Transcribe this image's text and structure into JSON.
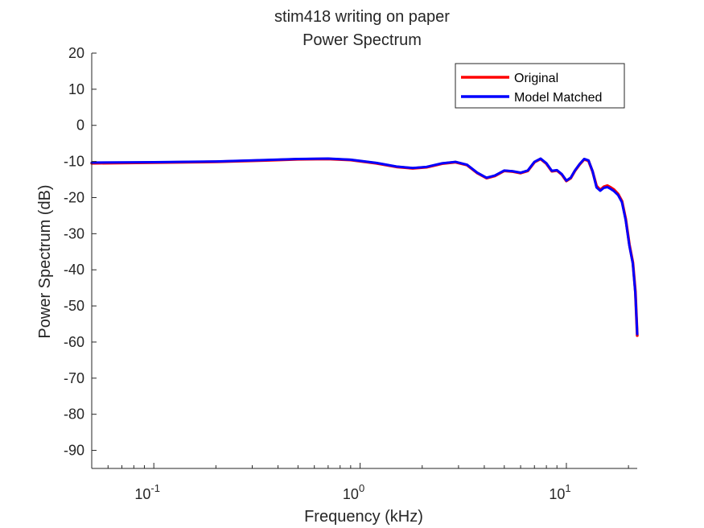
{
  "chart_data": {
    "type": "line",
    "title_lines": [
      "stim418 writing on paper",
      "Power Spectrum"
    ],
    "xlabel": "Frequency (kHz)",
    "ylabel": "Power Spectrum (dB)",
    "xscale": "log",
    "xlim": [
      0.05,
      22.05
    ],
    "ylim": [
      -95,
      20
    ],
    "yticks": [
      20,
      10,
      0,
      -10,
      -20,
      -30,
      -40,
      -50,
      -60,
      -70,
      -80,
      -90
    ],
    "xticks": [
      {
        "value": 0.1,
        "base": "10",
        "exp": "-1"
      },
      {
        "value": 1,
        "base": "10",
        "exp": "0"
      },
      {
        "value": 10,
        "base": "10",
        "exp": "1"
      }
    ],
    "grid": false,
    "legend_position": "top-right",
    "series": [
      {
        "name": "Original",
        "color": "#ff0000",
        "x": [
          0.05,
          0.1,
          0.2,
          0.35,
          0.5,
          0.7,
          0.9,
          1.2,
          1.5,
          1.8,
          2.1,
          2.5,
          2.9,
          3.3,
          3.7,
          4.1,
          4.5,
          5.0,
          5.5,
          6.0,
          6.5,
          7.0,
          7.5,
          8.0,
          8.5,
          9.0,
          9.5,
          10.0,
          10.5,
          11.0,
          11.6,
          12.2,
          12.8,
          13.4,
          14.0,
          14.6,
          15.2,
          15.8,
          16.4,
          17.0,
          17.8,
          18.6,
          19.4,
          20.2,
          21.0,
          21.6,
          22.05
        ],
        "y": [
          -10.5,
          -10.3,
          -10.1,
          -9.7,
          -9.4,
          -9.3,
          -9.6,
          -10.5,
          -11.5,
          -11.9,
          -11.6,
          -10.6,
          -10.2,
          -11.0,
          -13.2,
          -14.6,
          -14.0,
          -12.6,
          -12.8,
          -13.2,
          -12.6,
          -10.2,
          -9.3,
          -10.6,
          -12.7,
          -12.5,
          -13.6,
          -15.4,
          -14.6,
          -12.6,
          -10.8,
          -9.4,
          -9.8,
          -12.8,
          -16.8,
          -17.9,
          -17.0,
          -16.7,
          -17.2,
          -17.8,
          -19.0,
          -21.0,
          -26.0,
          -33.0,
          -38.0,
          -46.0,
          -58.2
        ]
      },
      {
        "name": "Model Matched",
        "color": "#0000ff",
        "x": [
          0.05,
          0.1,
          0.2,
          0.35,
          0.5,
          0.7,
          0.9,
          1.2,
          1.5,
          1.8,
          2.1,
          2.5,
          2.9,
          3.3,
          3.7,
          4.1,
          4.5,
          5.0,
          5.5,
          6.0,
          6.5,
          7.0,
          7.5,
          8.0,
          8.5,
          9.0,
          9.5,
          10.0,
          10.5,
          11.0,
          11.6,
          12.2,
          12.8,
          13.4,
          14.0,
          14.6,
          15.2,
          15.8,
          16.4,
          17.0,
          17.8,
          18.6,
          19.4,
          20.2,
          21.0,
          21.6,
          22.05
        ],
        "y": [
          -10.3,
          -10.2,
          -10.0,
          -9.6,
          -9.3,
          -9.2,
          -9.5,
          -10.4,
          -11.4,
          -11.8,
          -11.5,
          -10.5,
          -10.1,
          -10.9,
          -13.1,
          -14.5,
          -13.9,
          -12.5,
          -12.7,
          -13.1,
          -12.5,
          -10.1,
          -9.2,
          -10.5,
          -12.6,
          -12.4,
          -13.5,
          -15.3,
          -14.5,
          -12.5,
          -10.7,
          -9.3,
          -9.7,
          -12.7,
          -17.2,
          -18.1,
          -17.3,
          -17.1,
          -17.6,
          -18.2,
          -19.3,
          -21.3,
          -26.3,
          -33.3,
          -38.3,
          -46.5,
          -57.8
        ]
      }
    ]
  }
}
